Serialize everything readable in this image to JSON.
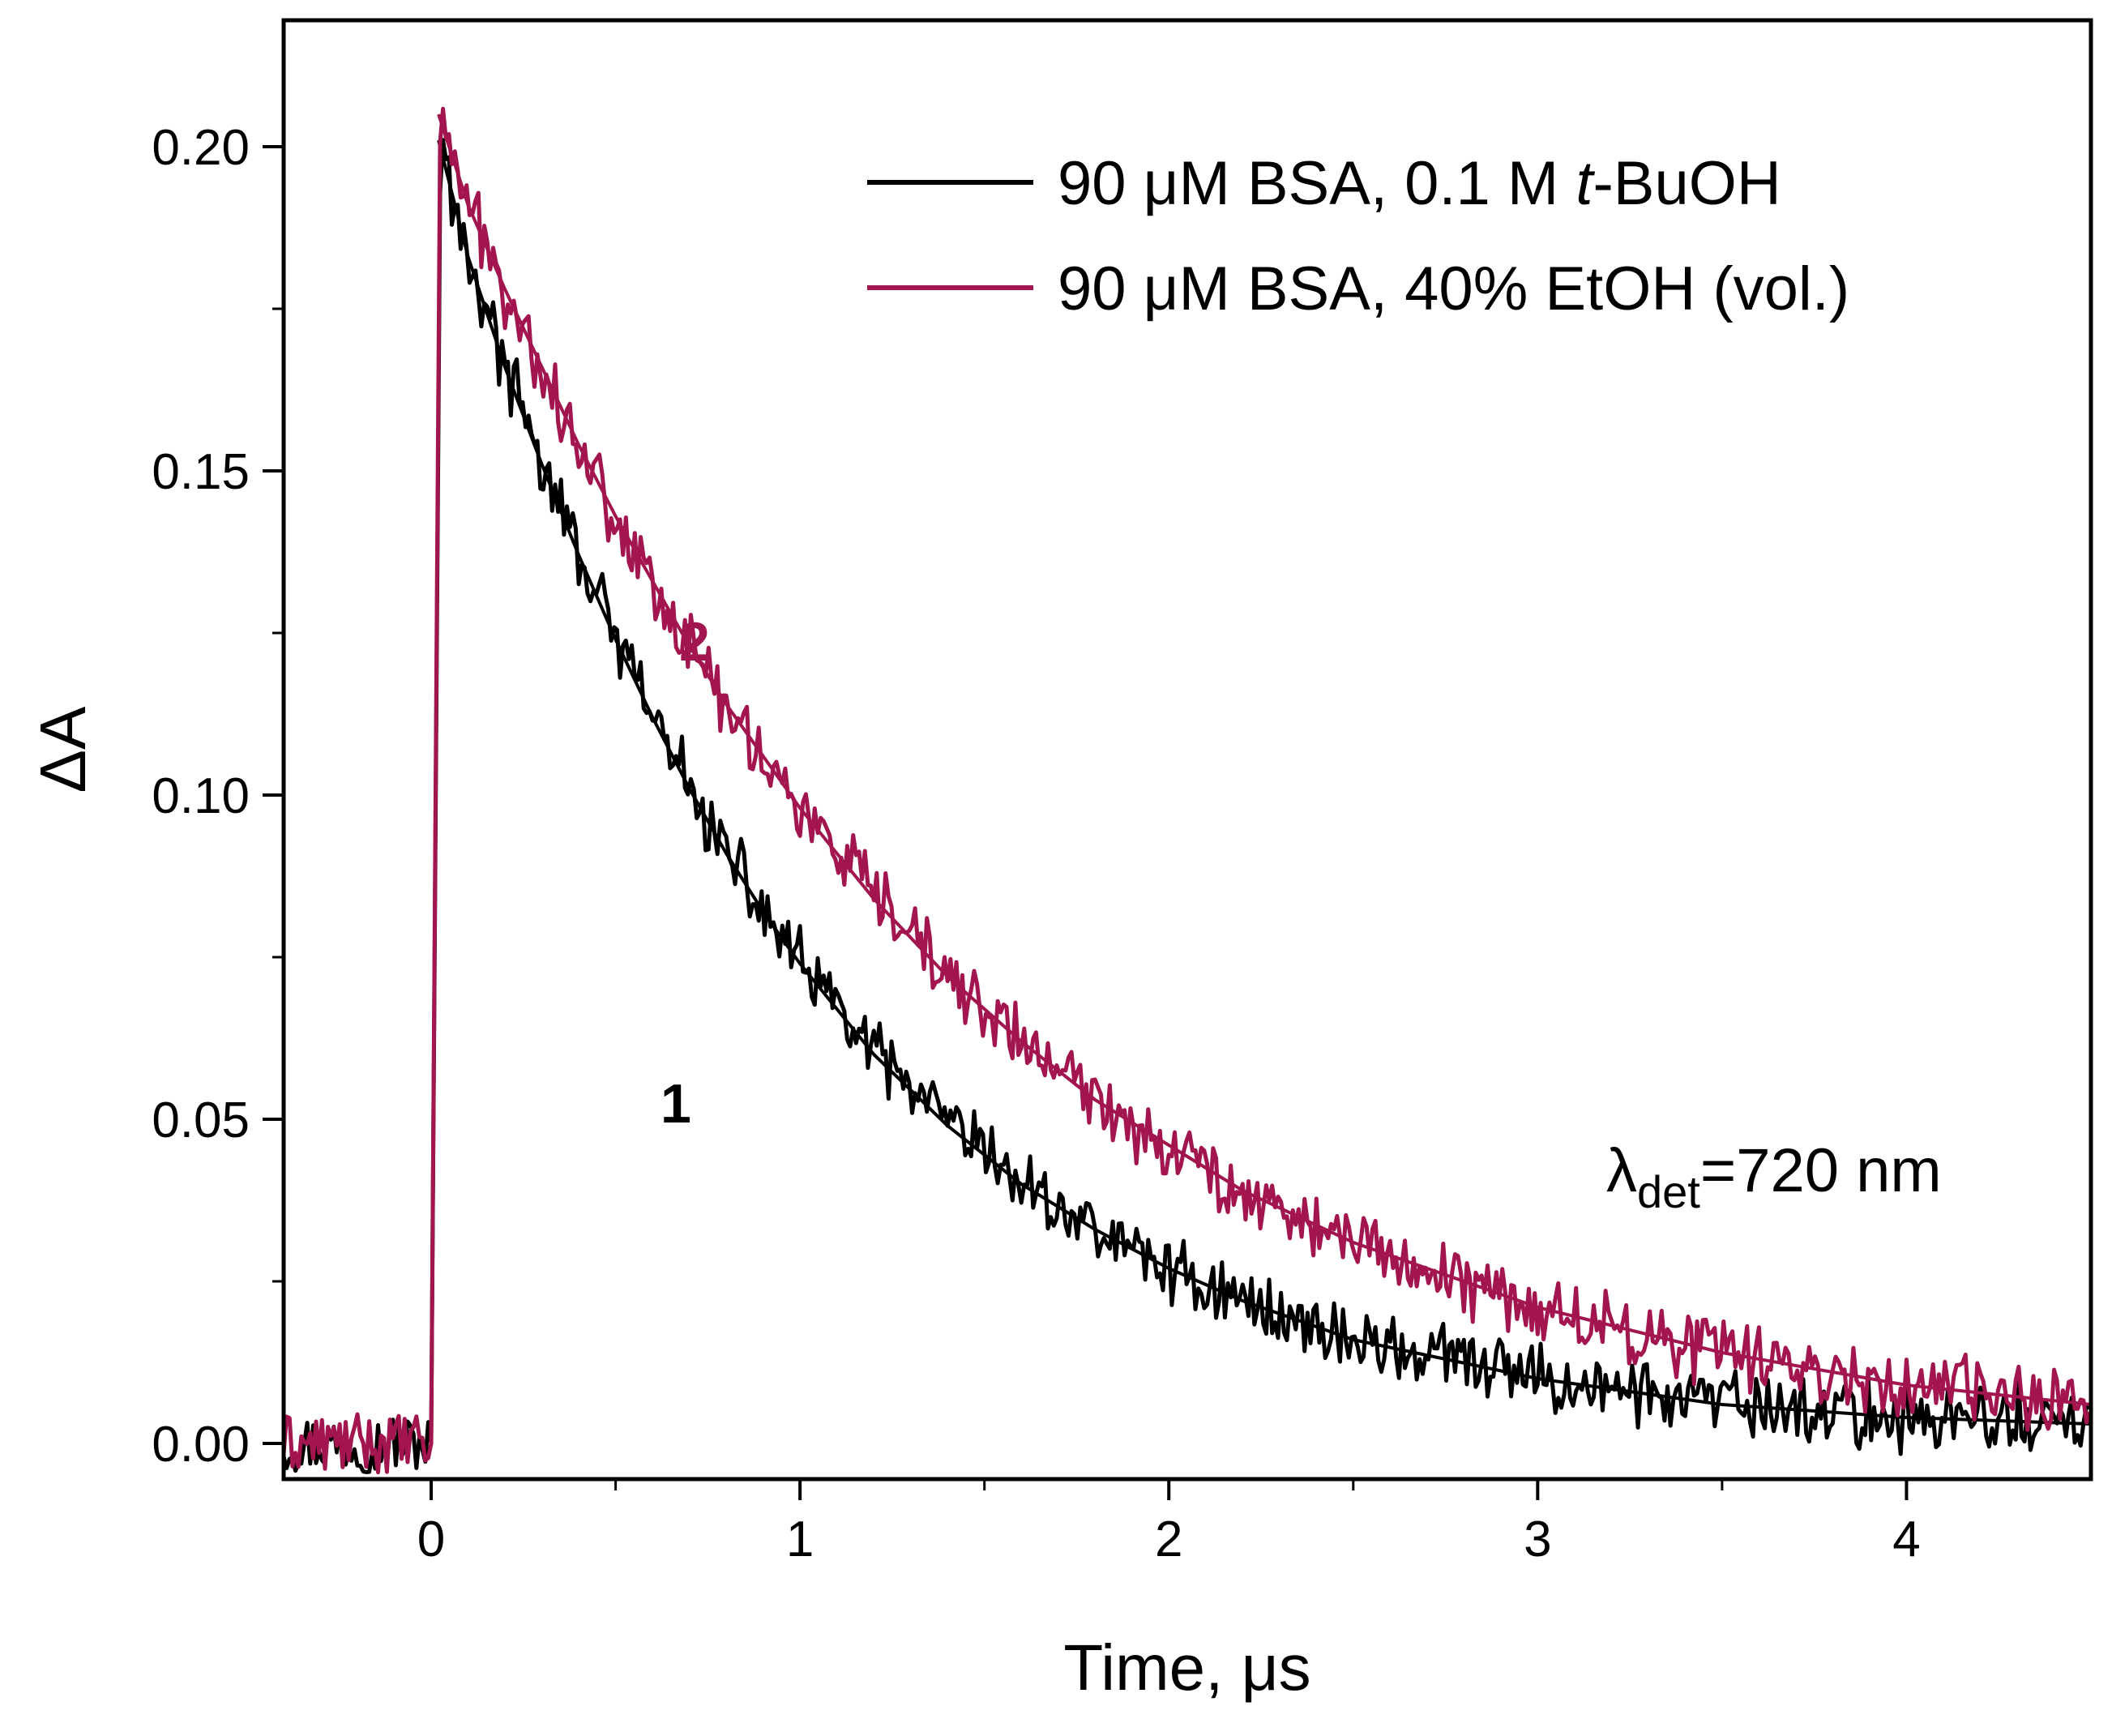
{
  "chart_data": {
    "type": "line",
    "xlabel": "Time, μs",
    "ylabel": "ΔA",
    "xlim": [
      -0.4,
      4.5
    ],
    "ylim": [
      -0.0055,
      0.2195
    ],
    "x_ticks": [
      0,
      1,
      2,
      3,
      4
    ],
    "x_tick_labels": [
      "0",
      "1",
      "2",
      "3",
      "4"
    ],
    "x_minor_ticks": [
      0.5,
      1.5,
      2.5,
      3.5
    ],
    "y_ticks": [
      0.0,
      0.05,
      0.1,
      0.15,
      0.2
    ],
    "y_tick_labels": [
      "0.00",
      "0.05",
      "0.10",
      "0.15",
      "0.20"
    ],
    "y_minor_ticks": [
      0.025,
      0.075,
      0.125,
      0.175
    ],
    "legend": {
      "position": "top-right"
    },
    "series": [
      {
        "name": "90 μM BSA, 0.1 M t-BuOH",
        "legend_parts": [
          "90 μM BSA, 0.1 M ",
          "t",
          "-BuOH"
        ],
        "label": "1",
        "color": "#000000",
        "peak": 0.201,
        "tail": 0.0,
        "fit_points": [
          [
            0.02,
            0.201
          ],
          [
            0.1,
            0.183
          ],
          [
            0.2,
            0.166
          ],
          [
            0.3,
            0.151
          ],
          [
            0.4,
            0.137
          ],
          [
            0.5,
            0.124
          ],
          [
            0.6,
            0.112
          ],
          [
            0.7,
            0.101
          ],
          [
            0.8,
            0.091
          ],
          [
            0.9,
            0.082
          ],
          [
            1.0,
            0.074
          ],
          [
            1.2,
            0.06
          ],
          [
            1.4,
            0.049
          ],
          [
            1.6,
            0.04
          ],
          [
            1.8,
            0.033
          ],
          [
            2.0,
            0.027
          ],
          [
            2.2,
            0.022
          ],
          [
            2.5,
            0.016
          ],
          [
            3.0,
            0.01
          ],
          [
            3.5,
            0.006
          ],
          [
            4.0,
            0.004
          ],
          [
            4.5,
            0.003
          ]
        ]
      },
      {
        "name": "90 μM BSA, 40% EtOH (vol.)",
        "legend_parts": [
          "90 μM BSA, 40% EtOH (vol.)"
        ],
        "label": "2",
        "color": "#a3154e",
        "peak": 0.209,
        "tail": 0.0,
        "fit_points": [
          [
            0.02,
            0.205
          ],
          [
            0.1,
            0.191
          ],
          [
            0.2,
            0.178
          ],
          [
            0.3,
            0.166
          ],
          [
            0.4,
            0.154
          ],
          [
            0.5,
            0.143
          ],
          [
            0.6,
            0.133
          ],
          [
            0.7,
            0.123
          ],
          [
            0.8,
            0.114
          ],
          [
            0.9,
            0.106
          ],
          [
            1.0,
            0.098
          ],
          [
            1.2,
            0.084
          ],
          [
            1.4,
            0.072
          ],
          [
            1.6,
            0.062
          ],
          [
            1.8,
            0.053
          ],
          [
            2.0,
            0.046
          ],
          [
            2.2,
            0.039
          ],
          [
            2.5,
            0.031
          ],
          [
            3.0,
            0.021
          ],
          [
            3.5,
            0.014
          ],
          [
            4.0,
            0.009
          ],
          [
            4.5,
            0.006
          ]
        ]
      }
    ],
    "annotation": {
      "prefix": "λ",
      "subscript": "det",
      "suffix": "=720 nm"
    }
  }
}
